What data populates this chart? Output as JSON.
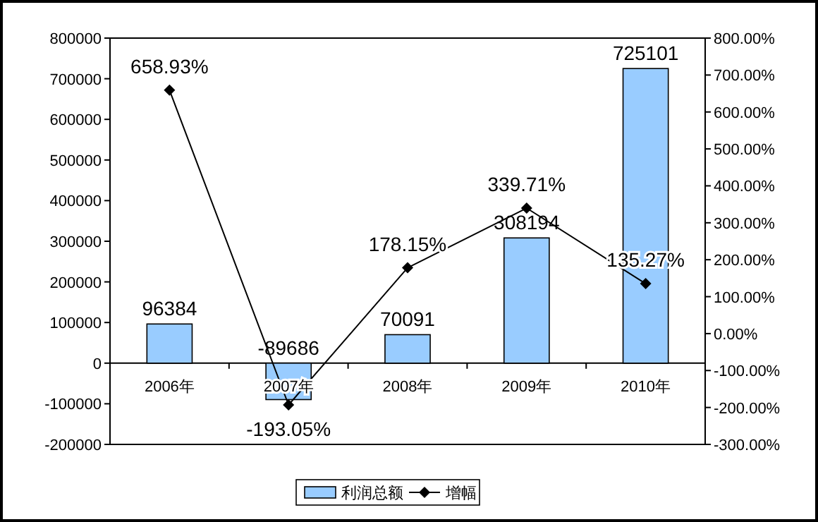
{
  "chart_data": {
    "type": "bar",
    "categories": [
      "2006年",
      "2007年",
      "2008年",
      "2009年",
      "2010年"
    ],
    "series": [
      {
        "name": "利润总额",
        "color": "#99ccff",
        "values": [
          96384,
          -89686,
          70091,
          308194,
          725101
        ],
        "value_labels": [
          "96384",
          "-89686",
          "70091",
          "308194",
          "725101"
        ]
      },
      {
        "name": "增幅",
        "type": "line",
        "axis": "y2",
        "color": "#000000",
        "marker": "diamond",
        "values": [
          658.93,
          -193.05,
          178.15,
          339.71,
          135.27
        ],
        "value_labels": [
          "658.93%",
          "-193.05%",
          "178.15%",
          "339.71%",
          "135.27%"
        ]
      }
    ],
    "ylim": [
      -200000,
      800000
    ],
    "yticks": [
      -200000,
      -100000,
      0,
      100000,
      200000,
      300000,
      400000,
      500000,
      600000,
      700000,
      800000
    ],
    "y2lim": [
      -300,
      800
    ],
    "y2ticks": [
      {
        "value": -300,
        "label": "-300.00%"
      },
      {
        "value": -200,
        "label": "-200.00%"
      },
      {
        "value": -100,
        "label": "-100.00%"
      },
      {
        "value": 0,
        "label": "0.00%"
      },
      {
        "value": 100,
        "label": "100.00%"
      },
      {
        "value": 200,
        "label": "200.00%"
      },
      {
        "value": 300,
        "label": "300.00%"
      },
      {
        "value": 400,
        "label": "400.00%"
      },
      {
        "value": 500,
        "label": "500.00%"
      },
      {
        "value": 600,
        "label": "600.00%"
      },
      {
        "value": 700,
        "label": "700.00%"
      },
      {
        "value": 800,
        "label": "800.00%"
      }
    ],
    "legend": "bottom"
  }
}
